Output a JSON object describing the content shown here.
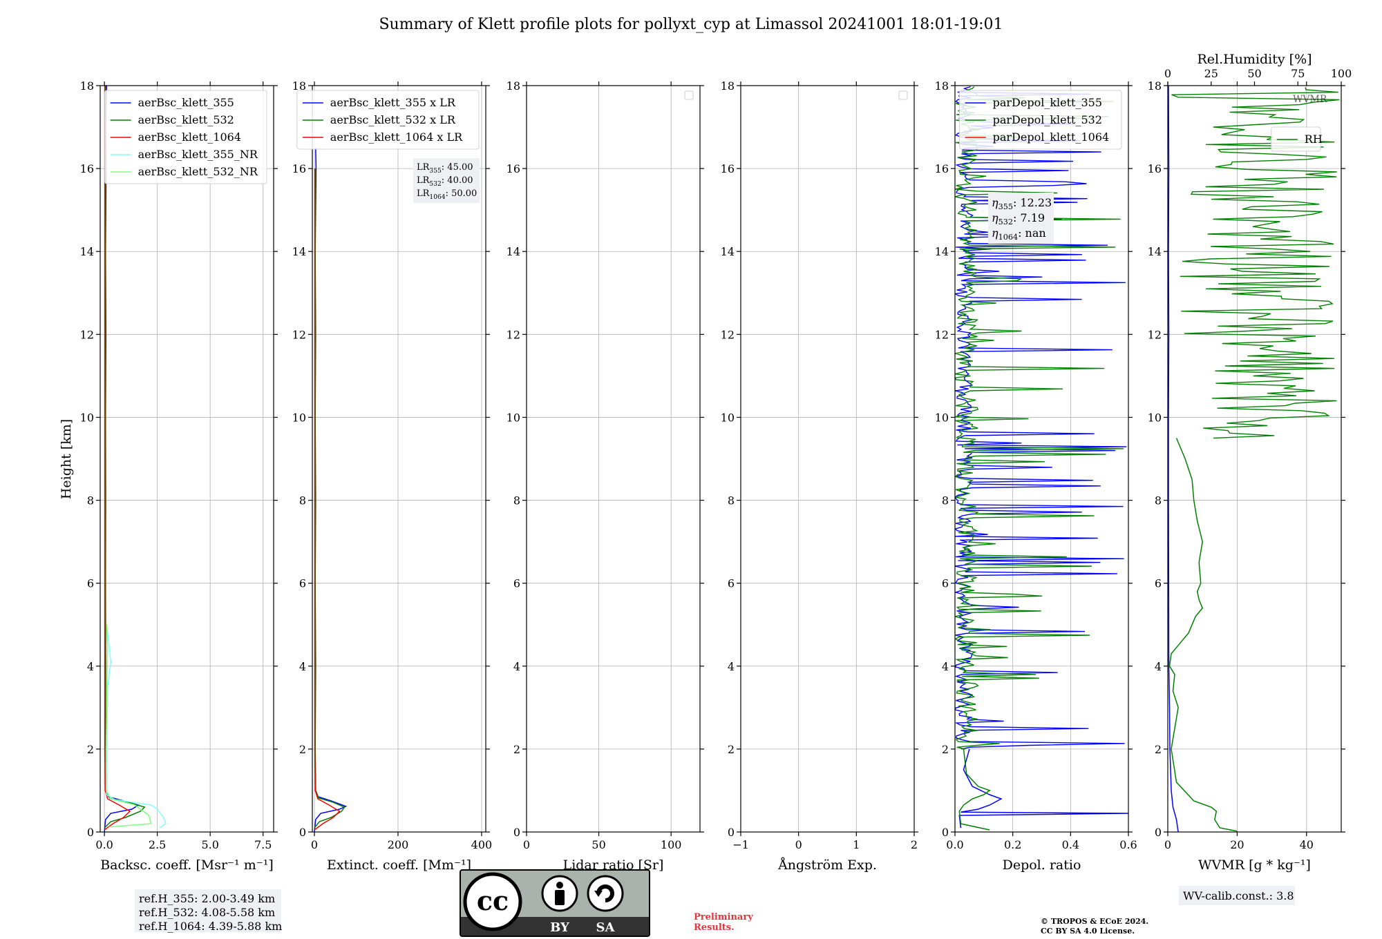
{
  "title": "Summary of Klett profile plots for pollyxt_cyp at Limassol 20241001 18:01-19:01",
  "ylabel": "Height [km]",
  "colors": {
    "blue": "#0000ff",
    "green": "#008000",
    "red": "#ff0000",
    "cyan": "#80ffff",
    "lightgreen": "#80ff80",
    "annotation_bg": "#eef0f4",
    "preliminary": "#e8323c"
  },
  "chart_data": [
    {
      "type": "line",
      "xlabel": "Backsc. coeff. [Msr⁻¹ m⁻¹]",
      "xlim": [
        -0.2,
        8.0
      ],
      "ylim": [
        0,
        18
      ],
      "xticks": [
        0.0,
        2.5,
        5.0,
        7.5
      ],
      "xtick_labels": [
        "0.0",
        "2.5",
        "5.0",
        "7.5"
      ],
      "yticks": [
        0,
        2,
        4,
        6,
        8,
        10,
        12,
        14,
        16,
        18
      ],
      "ytick_labels": [
        "0",
        "2",
        "4",
        "6",
        "8",
        "10",
        "12",
        "14",
        "16",
        "18"
      ],
      "grid": true,
      "legend": "upper-right",
      "series": [
        {
          "name": "aerBsc_klett_355",
          "color": "blue",
          "points": [
            [
              0.0,
              0.0
            ],
            [
              0.05,
              0.3
            ],
            [
              0.3,
              0.45
            ],
            [
              1.3,
              0.55
            ],
            [
              1.6,
              0.65
            ],
            [
              0.9,
              0.75
            ],
            [
              0.2,
              0.85
            ],
            [
              0.08,
              1.0
            ],
            [
              0.05,
              2.0
            ],
            [
              0.06,
              4.0
            ],
            [
              0.05,
              6.0
            ],
            [
              0.06,
              8.0
            ],
            [
              0.05,
              10.0
            ],
            [
              0.07,
              12.0
            ],
            [
              0.05,
              14.0
            ],
            [
              0.08,
              16.0
            ],
            [
              0.06,
              17.0
            ],
            [
              0.1,
              18.0
            ]
          ]
        },
        {
          "name": "aerBsc_klett_532",
          "color": "green",
          "points": [
            [
              0.0,
              0.1
            ],
            [
              0.3,
              0.25
            ],
            [
              1.0,
              0.35
            ],
            [
              1.7,
              0.5
            ],
            [
              1.9,
              0.6
            ],
            [
              1.1,
              0.72
            ],
            [
              0.25,
              0.82
            ],
            [
              0.07,
              1.0
            ],
            [
              0.04,
              2.0
            ],
            [
              0.05,
              4.0
            ],
            [
              0.04,
              6.0
            ],
            [
              0.05,
              8.0
            ],
            [
              0.04,
              10.0
            ],
            [
              0.05,
              12.0
            ],
            [
              0.04,
              14.0
            ],
            [
              0.05,
              16.0
            ],
            [
              0.05,
              18.0
            ]
          ]
        },
        {
          "name": "aerBsc_klett_1064",
          "color": "red",
          "points": [
            [
              0.0,
              0.05
            ],
            [
              0.4,
              0.2
            ],
            [
              0.9,
              0.35
            ],
            [
              1.2,
              0.5
            ],
            [
              0.7,
              0.65
            ],
            [
              0.15,
              0.8
            ],
            [
              0.04,
              1.0
            ],
            [
              0.02,
              2.0
            ],
            [
              0.02,
              6.0
            ],
            [
              0.02,
              10.0
            ],
            [
              0.02,
              14.0
            ],
            [
              0.02,
              18.0
            ]
          ]
        },
        {
          "name": "aerBsc_klett_355_NR",
          "color": "cyan",
          "points": [
            [
              2.6,
              0.1
            ],
            [
              2.9,
              0.2
            ],
            [
              2.8,
              0.35
            ],
            [
              2.5,
              0.55
            ],
            [
              2.2,
              0.65
            ],
            [
              0.5,
              0.78
            ],
            [
              0.1,
              0.9
            ],
            [
              0.1,
              1.5
            ],
            [
              0.15,
              3.5
            ],
            [
              0.3,
              4.1
            ],
            [
              0.2,
              4.6
            ],
            [
              0.1,
              5.0
            ]
          ]
        },
        {
          "name": "aerBsc_klett_532_NR",
          "color": "lightgreen",
          "points": [
            [
              0.2,
              0.12
            ],
            [
              2.2,
              0.2
            ],
            [
              2.1,
              0.4
            ],
            [
              1.7,
              0.55
            ],
            [
              1.4,
              0.66
            ],
            [
              0.3,
              0.8
            ],
            [
              0.08,
              1.0
            ],
            [
              0.08,
              2.0
            ],
            [
              0.12,
              3.5
            ],
            [
              0.15,
              4.5
            ],
            [
              0.1,
              5.0
            ]
          ]
        }
      ],
      "annotation": [
        "ref.H_355: 2.00-3.49 km",
        "ref.H_532: 4.08-5.58 km",
        "ref.H_1064: 4.39-5.88 km"
      ]
    },
    {
      "type": "line",
      "xlabel": "Extinct. coeff. [Mm⁻¹]",
      "xlim": [
        -5,
        410
      ],
      "ylim": [
        0,
        18
      ],
      "xticks": [
        0,
        200,
        400
      ],
      "xtick_labels": [
        "0",
        "200",
        "400"
      ],
      "yticks": [
        0,
        2,
        4,
        6,
        8,
        10,
        12,
        14,
        16,
        18
      ],
      "ytick_labels": [
        "0",
        "2",
        "4",
        "6",
        "8",
        "10",
        "12",
        "14",
        "16",
        "18"
      ],
      "grid": true,
      "legend": "upper-right",
      "series": [
        {
          "name": "aerBsc_klett_355 x LR",
          "color": "blue",
          "points": [
            [
              0,
              0.0
            ],
            [
              3,
              0.3
            ],
            [
              15,
              0.45
            ],
            [
              60,
              0.55
            ],
            [
              75,
              0.62
            ],
            [
              40,
              0.75
            ],
            [
              9,
              0.85
            ],
            [
              3,
              1.0
            ],
            [
              2,
              2.0
            ],
            [
              3,
              4.0
            ],
            [
              2,
              6.0
            ],
            [
              3,
              8.0
            ],
            [
              2,
              10.0
            ],
            [
              3,
              12.0
            ],
            [
              2,
              14.0
            ],
            [
              4,
              16.0
            ],
            [
              3,
              16.5
            ]
          ]
        },
        {
          "name": "aerBsc_klett_532 x LR",
          "color": "green",
          "points": [
            [
              0,
              0.1
            ],
            [
              12,
              0.25
            ],
            [
              40,
              0.35
            ],
            [
              65,
              0.5
            ],
            [
              72,
              0.6
            ],
            [
              44,
              0.72
            ],
            [
              10,
              0.82
            ],
            [
              3,
              1.0
            ],
            [
              2,
              2.0
            ],
            [
              2,
              6.0
            ],
            [
              2,
              10.0
            ],
            [
              2,
              14.0
            ],
            [
              2,
              16.0
            ]
          ]
        },
        {
          "name": "aerBsc_klett_1064 x LR",
          "color": "red",
          "points": [
            [
              0,
              0.05
            ],
            [
              20,
              0.2
            ],
            [
              45,
              0.35
            ],
            [
              60,
              0.5
            ],
            [
              35,
              0.65
            ],
            [
              8,
              0.8
            ],
            [
              2,
              1.0
            ],
            [
              1,
              2.0
            ],
            [
              1,
              8.0
            ],
            [
              1,
              14.0
            ],
            [
              1,
              16.0
            ]
          ]
        }
      ],
      "annotation": [
        {
          "label": "LR",
          "sub": "355",
          "value": ": 45.00"
        },
        {
          "label": "LR",
          "sub": "532",
          "value": ": 40.00"
        },
        {
          "label": "LR",
          "sub": "1064",
          "value": ": 50.00"
        }
      ]
    },
    {
      "type": "line",
      "xlabel": "Lidar ratio [Sr]",
      "xlim": [
        0,
        120
      ],
      "ylim": [
        0,
        18
      ],
      "xticks": [
        0,
        50,
        100
      ],
      "xtick_labels": [
        "0",
        "50",
        "100"
      ],
      "yticks": [
        0,
        2,
        4,
        6,
        8,
        10,
        12,
        14,
        16,
        18
      ],
      "ytick_labels": [
        "0",
        "2",
        "4",
        "6",
        "8",
        "10",
        "12",
        "14",
        "16",
        "18"
      ],
      "grid": true,
      "legend": "upper-right-empty",
      "series": []
    },
    {
      "type": "line",
      "xlabel": "Ångström Exp.",
      "xlim": [
        -1,
        2
      ],
      "ylim": [
        0,
        18
      ],
      "xticks": [
        -1,
        0,
        1,
        2
      ],
      "xtick_labels": [
        "−1",
        "0",
        "1",
        "2"
      ],
      "yticks": [
        0,
        2,
        4,
        6,
        8,
        10,
        12,
        14,
        16,
        18
      ],
      "ytick_labels": [
        "0",
        "2",
        "4",
        "6",
        "8",
        "10",
        "12",
        "14",
        "16",
        "18"
      ],
      "grid": true,
      "legend": "upper-right-empty",
      "series": []
    },
    {
      "type": "line",
      "xlabel": "Depol. ratio",
      "xlim": [
        0,
        0.6
      ],
      "ylim": [
        0,
        18
      ],
      "xticks": [
        0.0,
        0.2,
        0.4,
        0.6
      ],
      "xtick_labels": [
        "0.0",
        "0.2",
        "0.4",
        "0.6"
      ],
      "yticks": [
        0,
        2,
        4,
        6,
        8,
        10,
        12,
        14,
        16,
        18
      ],
      "ytick_labels": [
        "0",
        "2",
        "4",
        "6",
        "8",
        "10",
        "12",
        "14",
        "16",
        "18"
      ],
      "grid": true,
      "legend": "upper-right",
      "series": [
        {
          "name": "parDepol_klett_355",
          "color": "blue",
          "points": [
            [
              0.02,
              0.1
            ],
            [
              0.015,
              0.4
            ],
            [
              0.6,
              0.45
            ],
            [
              0.02,
              0.48
            ],
            [
              0.08,
              0.55
            ],
            [
              0.12,
              0.65
            ],
            [
              0.16,
              0.8
            ],
            [
              0.12,
              0.9
            ],
            [
              0.06,
              1.1
            ],
            [
              0.03,
              1.5
            ],
            [
              0.05,
              2.0
            ]
          ],
          "spikes_to": 0.6,
          "noise_max": 0.06,
          "seed": 355
        },
        {
          "name": "parDepol_klett_532",
          "color": "green",
          "points": [
            [
              0.12,
              0.05
            ],
            [
              0.02,
              0.2
            ],
            [
              0.015,
              0.5
            ],
            [
              0.03,
              0.65
            ],
            [
              0.06,
              0.8
            ],
            [
              0.1,
              0.9
            ],
            [
              0.12,
              1.0
            ],
            [
              0.08,
              1.1
            ],
            [
              0.04,
              1.4
            ],
            [
              0.03,
              2.0
            ]
          ],
          "spikes_to": 0.6,
          "noise_max": 0.08,
          "seed": 532
        },
        {
          "name": "parDepol_klett_1064",
          "color": "red",
          "points": []
        }
      ],
      "annotation": [
        {
          "label": "η",
          "sub": "355",
          "value": ": 12.23"
        },
        {
          "label": "η",
          "sub": "532",
          "value": ": 7.19"
        },
        {
          "label": "η",
          "sub": "1064",
          "value": ": nan"
        }
      ]
    },
    {
      "type": "line",
      "xlabel": "WVMR [g * kg⁻¹]",
      "xlim": [
        0,
        50
      ],
      "ylim": [
        0,
        18
      ],
      "xticks": [
        0,
        20,
        40
      ],
      "xtick_labels": [
        "0",
        "20",
        "40"
      ],
      "yticks": [
        0,
        2,
        4,
        6,
        8,
        10,
        12,
        14,
        16,
        18
      ],
      "ytick_labels": [
        "0",
        "2",
        "4",
        "6",
        "8",
        "10",
        "12",
        "14",
        "16",
        "18"
      ],
      "x2label": "Rel.Humidity [%]",
      "x2lim": [
        0,
        100
      ],
      "x2ticks": [
        0,
        25,
        50,
        75,
        100
      ],
      "x2tick_labels": [
        "0",
        "25",
        "50",
        "75",
        "100"
      ],
      "grid": true,
      "legend": "upper-right",
      "series": [
        {
          "name": "WVMR",
          "color": "blue",
          "points": [
            [
              3.0,
              0.0
            ],
            [
              2.5,
              0.3
            ],
            [
              1.5,
              0.6
            ],
            [
              1.0,
              1.0
            ],
            [
              0.8,
              1.5
            ],
            [
              0.6,
              2.0
            ],
            [
              0.5,
              3.0
            ],
            [
              0.3,
              4.0
            ],
            [
              0.25,
              6.0
            ],
            [
              0.2,
              8.0
            ],
            [
              0.2,
              10.0
            ],
            [
              0.3,
              12.0
            ],
            [
              0.2,
              14.0
            ],
            [
              0.3,
              16.0
            ],
            [
              0.2,
              18.0
            ]
          ]
        },
        {
          "name": "RH",
          "color": "green",
          "points": [
            [
              40,
              0.02
            ],
            [
              30,
              0.1
            ],
            [
              27,
              0.3
            ],
            [
              28,
              0.5
            ],
            [
              25,
              0.6
            ],
            [
              15,
              0.75
            ],
            [
              5,
              1.2
            ],
            [
              2,
              2.0
            ],
            [
              4,
              2.5
            ],
            [
              6,
              3.0
            ],
            [
              3,
              3.4
            ],
            [
              4,
              3.8
            ],
            [
              1,
              4.0
            ],
            [
              2,
              4.3
            ],
            [
              8,
              4.6
            ],
            [
              12,
              4.8
            ],
            [
              16,
              5.2
            ],
            [
              20,
              5.4
            ],
            [
              18,
              5.6
            ],
            [
              17,
              5.8
            ],
            [
              19,
              6.0
            ],
            [
              18,
              6.5
            ],
            [
              20,
              7.0
            ],
            [
              17,
              7.5
            ],
            [
              15,
              8.0
            ],
            [
              14,
              8.5
            ],
            [
              10,
              9.0
            ],
            [
              5,
              9.5
            ]
          ],
          "noise_above": 9.5,
          "noise_max": 100,
          "seed": 77
        }
      ],
      "annotation": [
        "WV-calib.const.: 3.8"
      ]
    }
  ],
  "license_badge": {
    "cc": "cc",
    "by": "BY",
    "sa": "SA"
  },
  "preliminary": [
    "Preliminary",
    "Results."
  ],
  "copyright": [
    "© TROPOS & ECoE 2024.",
    "CC BY SA 4.0 License."
  ]
}
